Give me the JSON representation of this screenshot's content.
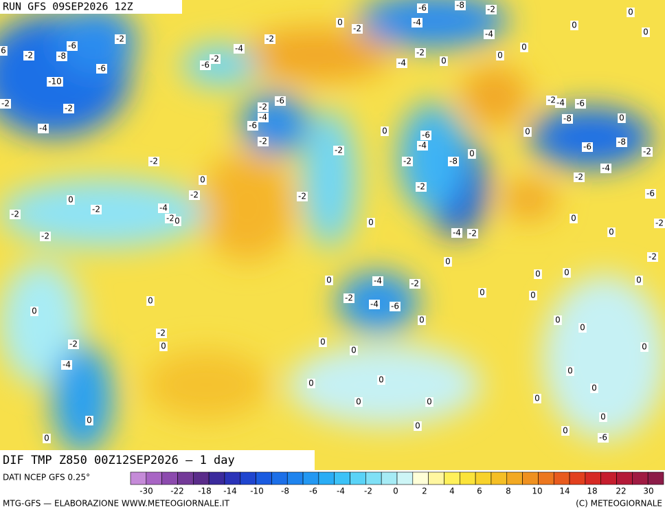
{
  "header": {
    "run": "RUN GFS 09SEP2026 12Z"
  },
  "map": {
    "title": "DIF TMP Z850 00Z12SEP2026 — 1 day",
    "contour_labels": [
      0,
      -2,
      -6,
      -8,
      -2,
      -4,
      -4,
      -2,
      -4,
      -2,
      -6,
      -2,
      -8,
      -6,
      6,
      -10,
      -2,
      -2,
      -4,
      -6,
      -2,
      -2,
      -4,
      0,
      0,
      0,
      0,
      0,
      0,
      -2,
      -6,
      -4,
      -6,
      -2,
      -2,
      -4,
      -6,
      -8,
      0,
      -8,
      -2,
      -6,
      -4,
      -2,
      -6,
      0,
      0,
      -6,
      -4,
      0,
      -8,
      -2,
      -2,
      -2,
      0,
      0,
      -2,
      -2,
      -2,
      -4,
      -2,
      0,
      -2,
      0,
      -2,
      -2,
      -4,
      -2,
      0,
      0,
      -2,
      -2,
      0,
      0,
      -4,
      -2,
      -2,
      -4,
      -6,
      0,
      0,
      -2,
      0,
      -2,
      -4,
      0,
      0,
      0,
      0,
      0,
      0,
      0,
      0,
      0,
      0,
      0,
      0,
      0,
      0,
      0,
      0,
      0,
      0,
      0,
      0,
      0,
      -6,
      0,
      0
    ]
  },
  "colorbar": {
    "source": "DATI NCEP GFS 0.25°",
    "colors": [
      "#c58bd8",
      "#a865c4",
      "#8c4aae",
      "#733a98",
      "#5a2c8a",
      "#3b2a9c",
      "#2a33b8",
      "#1f45cf",
      "#1a5be0",
      "#1c6fe8",
      "#1f84ee",
      "#2398f2",
      "#2aadf5",
      "#3cc2f7",
      "#5ad3f7",
      "#7fe0f6",
      "#a6ebf5",
      "#cdf5f6",
      "#ffffd8",
      "#fff6a0",
      "#fff05a",
      "#fbe33a",
      "#f8d22b",
      "#f5bf25",
      "#f2a923",
      "#ef9120",
      "#ec771f",
      "#e85b1e",
      "#e2401e",
      "#d62a24",
      "#c61e2e",
      "#b41a38",
      "#a01b42",
      "#8c1c48"
    ],
    "ticks": [
      -30,
      -22,
      -18,
      -14,
      -10,
      -8,
      -6,
      -4,
      -2,
      0,
      2,
      4,
      6,
      8,
      10,
      14,
      18,
      22,
      30
    ]
  },
  "footer": {
    "left": "MTG-GFS — ELABORAZIONE WWW.METEOGIORNALE.IT",
    "right": "(C) METEOGIORNALE"
  }
}
